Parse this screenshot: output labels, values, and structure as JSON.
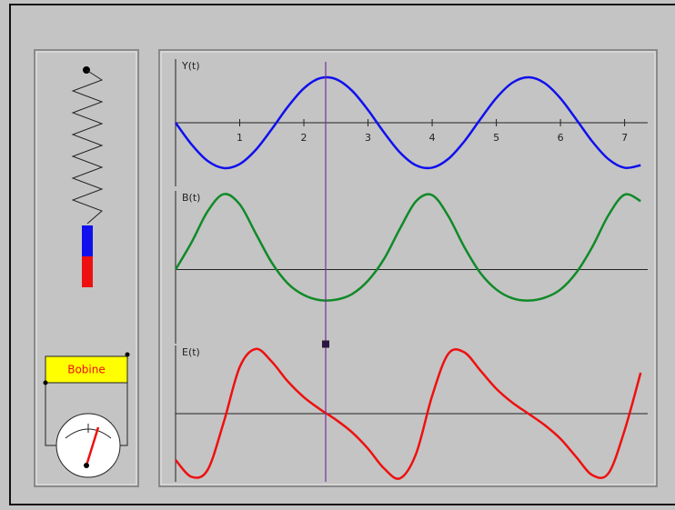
{
  "chart_data": [
    {
      "type": "line",
      "title": "Y(t)",
      "x": [
        0,
        0.25,
        0.5,
        0.75,
        1,
        1.25,
        1.5,
        1.75,
        2,
        2.25,
        2.5,
        2.75,
        3,
        3.25,
        3.5,
        3.75,
        4,
        4.25,
        4.5,
        4.75,
        5,
        5.25,
        5.5,
        5.75,
        6,
        6.25,
        6.5,
        6.75,
        7,
        7.25
      ],
      "series": [
        {
          "color": "#1010ee",
          "values": [
            0,
            -0.479,
            -0.841,
            -0.997,
            -0.909,
            -0.598,
            -0.141,
            0.351,
            0.757,
            0.978,
            0.959,
            0.706,
            0.279,
            -0.215,
            -0.657,
            -0.938,
            -0.989,
            -0.798,
            -0.412,
            0.075,
            0.544,
            0.88,
            1,
            0.875,
            0.537,
            0.066,
            -0.42,
            -0.804,
            -0.991,
            -0.935
          ]
        }
      ],
      "xlim": [
        0,
        7.36
      ],
      "ylim": [
        -1.4,
        1.4
      ],
      "xticks": [
        1,
        2,
        3,
        4,
        5,
        6,
        7
      ]
    },
    {
      "type": "line",
      "title": "B(t)",
      "x": [
        0,
        0.25,
        0.5,
        0.75,
        1,
        1.25,
        1.5,
        1.75,
        2,
        2.25,
        2.5,
        2.75,
        3,
        3.25,
        3.5,
        3.75,
        4,
        4.25,
        4.5,
        4.75,
        5,
        5.25,
        5.5,
        5.75,
        6,
        6.25,
        6.5,
        6.75,
        7,
        7.25
      ],
      "series": [
        {
          "color": "#108a28",
          "values": [
            0,
            0.59,
            1.26,
            1.63,
            1.41,
            0.78,
            0.15,
            -0.3,
            -0.55,
            -0.66,
            -0.65,
            -0.53,
            -0.24,
            0.23,
            0.89,
            1.48,
            1.61,
            1.16,
            0.49,
            -0.07,
            -0.43,
            -0.62,
            -0.67,
            -0.61,
            -0.43,
            -0.06,
            0.5,
            1.18,
            1.62,
            1.48
          ]
        }
      ],
      "xlim": [
        0,
        7.36
      ],
      "ylim": [
        -1.6,
        1.7
      ]
    },
    {
      "type": "line",
      "title": "E(t)",
      "x": [
        0,
        0.25,
        0.5,
        0.75,
        1,
        1.25,
        1.5,
        1.75,
        2,
        2.25,
        2.5,
        2.75,
        3,
        3.25,
        3.5,
        3.75,
        4,
        4.25,
        4.5,
        4.75,
        5,
        5.25,
        5.5,
        5.75,
        6,
        6.25,
        6.5,
        6.75,
        7,
        7.25
      ],
      "series": [
        {
          "color": "#ee1010",
          "values": [
            -1.97,
            -2.69,
            -2.39,
            -0.37,
            1.98,
            2.75,
            2.21,
            1.37,
            0.7,
            0.19,
            -0.26,
            -0.79,
            -1.49,
            -2.33,
            -2.75,
            -1.7,
            0.76,
            2.54,
            2.61,
            1.84,
            1.06,
            0.47,
            0,
            -0.48,
            -1.07,
            -1.86,
            -2.62,
            -2.53,
            -0.71,
            1.74
          ]
        }
      ],
      "xlim": [
        0,
        7.36
      ],
      "ylim": [
        -2.9,
        2.9
      ]
    }
  ],
  "cursor": {
    "t": 2.34,
    "color": "#7a2fa0"
  },
  "coil": {
    "label": "Bobine"
  }
}
